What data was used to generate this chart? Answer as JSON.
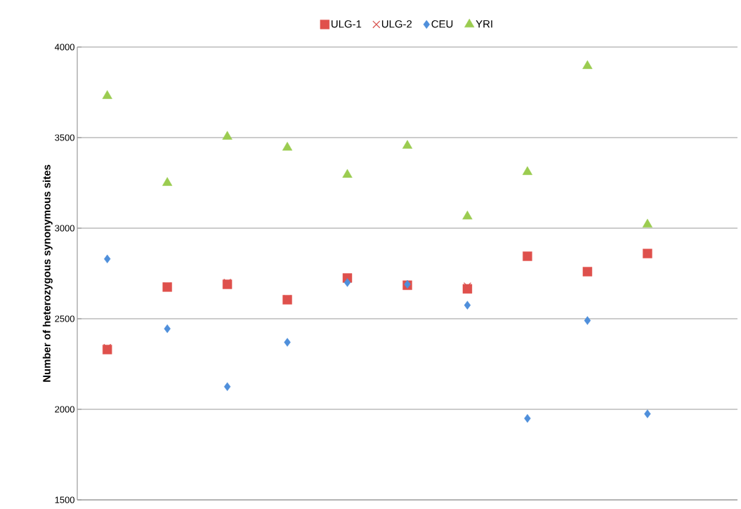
{
  "chart_data": {
    "type": "scatter",
    "ylabel": "Number of heterozygous synonymous sites",
    "categories": [
      null,
      null,
      null,
      null,
      null,
      null,
      null,
      null,
      null,
      null,
      null
    ],
    "series": [
      {
        "name": "ULG-1",
        "color": "#e0504c",
        "marker": "square",
        "values": [
          2330,
          2675,
          2690,
          2605,
          2725,
          2685,
          2665,
          2845,
          2760,
          2860,
          null
        ]
      },
      {
        "name": "ULG-2",
        "color": "#d9534f",
        "marker": "cross",
        "values": [
          2340,
          2680,
          2700,
          2610,
          2725,
          2685,
          2680,
          2845,
          2760,
          2860,
          null
        ]
      },
      {
        "name": "CEU",
        "color": "#4f8fdb",
        "marker": "diamond",
        "values": [
          2830,
          2445,
          2125,
          2370,
          2700,
          2690,
          2575,
          1950,
          2490,
          1975,
          null
        ]
      },
      {
        "name": "YRI",
        "color": "#9bcc50",
        "marker": "triangle",
        "values": [
          3730,
          3250,
          3505,
          3445,
          3295,
          3455,
          3065,
          3310,
          3895,
          3020,
          null
        ]
      }
    ],
    "ylim": [
      1500,
      4000
    ],
    "yticks": [
      1500,
      2000,
      2500,
      3000,
      3500,
      4000
    ],
    "grid": "y",
    "legend": "top",
    "tick_labels": "y"
  }
}
